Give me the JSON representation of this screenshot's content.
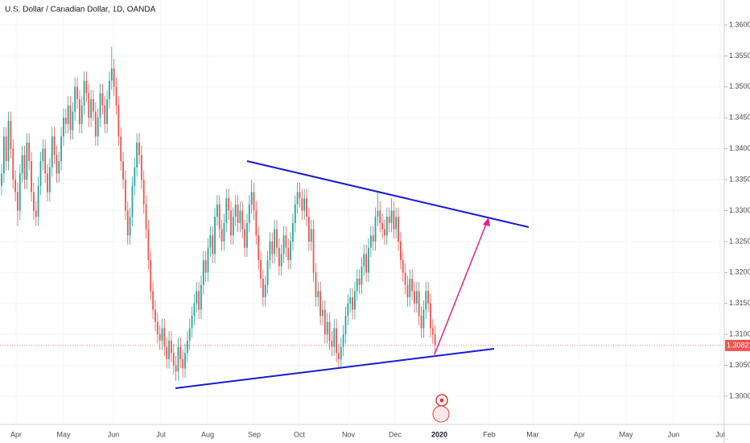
{
  "chart_data": {
    "type": "candlestick",
    "title": "U.S. Dollar / Canadian Dollar, 1D, OANDA",
    "up_color": "#26a69a",
    "down_color": "#ef5350",
    "ylim": [
      1.29544,
      1.36404
    ],
    "yticks": [
      {
        "value": 1.3,
        "label": "1.30000"
      },
      {
        "value": 1.305,
        "label": "1.30500"
      },
      {
        "value": 1.31,
        "label": "1.31000"
      },
      {
        "value": 1.315,
        "label": "1.31500"
      },
      {
        "value": 1.32,
        "label": "1.32000"
      },
      {
        "value": 1.325,
        "label": "1.32500"
      },
      {
        "value": 1.33,
        "label": "1.33000"
      },
      {
        "value": 1.335,
        "label": "1.33500"
      },
      {
        "value": 1.34,
        "label": "1.34000"
      },
      {
        "value": 1.345,
        "label": "1.34500"
      },
      {
        "value": 1.35,
        "label": "1.35000"
      },
      {
        "value": 1.355,
        "label": "1.35500"
      },
      {
        "value": 1.36,
        "label": "1.36000"
      }
    ],
    "xticks": [
      "Apr",
      "May",
      "Jun",
      "Jul",
      "Aug",
      "Sep",
      "Oct",
      "Nov",
      "Dec",
      "2020",
      "Feb",
      "Mar",
      "Apr",
      "May",
      "Jun",
      "Jul"
    ],
    "last_price": 1.30821,
    "candles": [
      [
        1.334,
        1.3375,
        1.3325,
        1.336
      ],
      [
        1.336,
        1.3435,
        1.3345,
        1.342
      ],
      [
        1.342,
        1.3435,
        1.3365,
        1.338
      ],
      [
        1.338,
        1.346,
        1.3365,
        1.3445
      ],
      [
        1.3445,
        1.346,
        1.3385,
        1.34
      ],
      [
        1.34,
        1.3415,
        1.3335,
        1.335
      ],
      [
        1.335,
        1.3365,
        1.3315,
        1.333
      ],
      [
        1.333,
        1.3345,
        1.3275,
        1.33
      ],
      [
        1.33,
        1.3375,
        1.3285,
        1.336
      ],
      [
        1.336,
        1.3405,
        1.3345,
        1.339
      ],
      [
        1.339,
        1.3405,
        1.3335,
        1.335
      ],
      [
        1.335,
        1.3425,
        1.3335,
        1.341
      ],
      [
        1.341,
        1.3425,
        1.3365,
        1.338
      ],
      [
        1.338,
        1.3395,
        1.3315,
        1.333
      ],
      [
        1.333,
        1.3345,
        1.3285,
        1.33
      ],
      [
        1.33,
        1.3315,
        1.3275,
        1.329
      ],
      [
        1.329,
        1.3355,
        1.3275,
        1.334
      ],
      [
        1.334,
        1.3395,
        1.3325,
        1.338
      ],
      [
        1.338,
        1.3415,
        1.3365,
        1.34
      ],
      [
        1.34,
        1.3415,
        1.3345,
        1.336
      ],
      [
        1.336,
        1.3375,
        1.3315,
        1.333
      ],
      [
        1.333,
        1.3385,
        1.3315,
        1.337
      ],
      [
        1.337,
        1.3435,
        1.3355,
        1.342
      ],
      [
        1.342,
        1.3435,
        1.3375,
        1.339
      ],
      [
        1.339,
        1.3405,
        1.3345,
        1.336
      ],
      [
        1.336,
        1.3395,
        1.3345,
        1.338
      ],
      [
        1.338,
        1.3435,
        1.3365,
        1.342
      ],
      [
        1.342,
        1.3465,
        1.3405,
        1.345
      ],
      [
        1.345,
        1.3465,
        1.3425,
        1.344
      ],
      [
        1.344,
        1.3485,
        1.3425,
        1.347
      ],
      [
        1.347,
        1.3485,
        1.3415,
        1.343
      ],
      [
        1.343,
        1.3475,
        1.3415,
        1.346
      ],
      [
        1.346,
        1.3515,
        1.3445,
        1.35
      ],
      [
        1.35,
        1.3515,
        1.3465,
        1.348
      ],
      [
        1.348,
        1.3495,
        1.3425,
        1.344
      ],
      [
        1.344,
        1.3485,
        1.3425,
        1.347
      ],
      [
        1.347,
        1.3525,
        1.3455,
        1.351
      ],
      [
        1.351,
        1.3525,
        1.3475,
        1.349
      ],
      [
        1.349,
        1.3505,
        1.3435,
        1.345
      ],
      [
        1.345,
        1.3495,
        1.3435,
        1.348
      ],
      [
        1.348,
        1.3495,
        1.3445,
        1.346
      ],
      [
        1.346,
        1.3475,
        1.3405,
        1.342
      ],
      [
        1.342,
        1.3465,
        1.3405,
        1.345
      ],
      [
        1.345,
        1.3505,
        1.3435,
        1.349
      ],
      [
        1.349,
        1.3505,
        1.3455,
        1.347
      ],
      [
        1.347,
        1.3485,
        1.3425,
        1.344
      ],
      [
        1.344,
        1.3495,
        1.3425,
        1.348
      ],
      [
        1.348,
        1.3525,
        1.3465,
        1.351
      ],
      [
        1.351,
        1.3565,
        1.3495,
        1.353
      ],
      [
        1.353,
        1.3545,
        1.3485,
        1.35
      ],
      [
        1.35,
        1.3515,
        1.3455,
        1.347
      ],
      [
        1.347,
        1.3485,
        1.3405,
        1.342
      ],
      [
        1.342,
        1.3435,
        1.3365,
        1.338
      ],
      [
        1.338,
        1.3395,
        1.3335,
        1.335
      ],
      [
        1.335,
        1.3365,
        1.3285,
        1.33
      ],
      [
        1.33,
        1.3315,
        1.3245,
        1.326
      ],
      [
        1.326,
        1.3305,
        1.3245,
        1.329
      ],
      [
        1.329,
        1.3355,
        1.3275,
        1.334
      ],
      [
        1.334,
        1.3385,
        1.3325,
        1.337
      ],
      [
        1.337,
        1.3425,
        1.3355,
        1.341
      ],
      [
        1.341,
        1.3425,
        1.3375,
        1.339
      ],
      [
        1.339,
        1.3405,
        1.3335,
        1.335
      ],
      [
        1.335,
        1.3365,
        1.3295,
        1.331
      ],
      [
        1.331,
        1.3325,
        1.3255,
        1.327
      ],
      [
        1.327,
        1.3285,
        1.3205,
        1.322
      ],
      [
        1.322,
        1.3235,
        1.3155,
        1.317
      ],
      [
        1.317,
        1.3185,
        1.3125,
        1.314
      ],
      [
        1.314,
        1.3155,
        1.3105,
        1.312
      ],
      [
        1.312,
        1.3135,
        1.3085,
        1.31
      ],
      [
        1.31,
        1.3115,
        1.3075,
        1.309
      ],
      [
        1.309,
        1.3125,
        1.3075,
        1.311
      ],
      [
        1.311,
        1.3125,
        1.3065,
        1.308
      ],
      [
        1.308,
        1.3095,
        1.3045,
        1.306
      ],
      [
        1.306,
        1.3105,
        1.3045,
        1.309
      ],
      [
        1.309,
        1.3105,
        1.3055,
        1.307
      ],
      [
        1.307,
        1.3085,
        1.3035,
        1.305
      ],
      [
        1.305,
        1.3065,
        1.3025,
        1.304
      ],
      [
        1.304,
        1.3095,
        1.3025,
        1.308
      ],
      [
        1.308,
        1.3095,
        1.3045,
        1.306
      ],
      [
        1.306,
        1.3075,
        1.303,
        1.3045
      ],
      [
        1.3045,
        1.3085,
        1.303,
        1.307
      ],
      [
        1.307,
        1.3105,
        1.3055,
        1.309
      ],
      [
        1.309,
        1.3125,
        1.3075,
        1.311
      ],
      [
        1.311,
        1.3145,
        1.3095,
        1.313
      ],
      [
        1.313,
        1.3165,
        1.3115,
        1.315
      ],
      [
        1.315,
        1.3185,
        1.3135,
        1.317
      ],
      [
        1.317,
        1.3185,
        1.3125,
        1.314
      ],
      [
        1.314,
        1.3195,
        1.3125,
        1.318
      ],
      [
        1.318,
        1.3235,
        1.3165,
        1.322
      ],
      [
        1.322,
        1.3235,
        1.3185,
        1.32
      ],
      [
        1.32,
        1.3255,
        1.3185,
        1.324
      ],
      [
        1.324,
        1.3275,
        1.3225,
        1.326
      ],
      [
        1.326,
        1.3275,
        1.3215,
        1.323
      ],
      [
        1.323,
        1.3305,
        1.3215,
        1.329
      ],
      [
        1.329,
        1.3325,
        1.3275,
        1.331
      ],
      [
        1.331,
        1.3325,
        1.3255,
        1.327
      ],
      [
        1.327,
        1.3285,
        1.3235,
        1.325
      ],
      [
        1.325,
        1.3295,
        1.3235,
        1.328
      ],
      [
        1.328,
        1.3335,
        1.3265,
        1.332
      ],
      [
        1.332,
        1.3335,
        1.3285,
        1.33
      ],
      [
        1.33,
        1.3315,
        1.3245,
        1.326
      ],
      [
        1.326,
        1.3305,
        1.3245,
        1.329
      ],
      [
        1.329,
        1.3325,
        1.3275,
        1.331
      ],
      [
        1.331,
        1.3325,
        1.3265,
        1.328
      ],
      [
        1.328,
        1.3315,
        1.3265,
        1.33
      ],
      [
        1.33,
        1.3315,
        1.3255,
        1.327
      ],
      [
        1.327,
        1.3285,
        1.3225,
        1.324
      ],
      [
        1.324,
        1.3295,
        1.3225,
        1.328
      ],
      [
        1.328,
        1.3325,
        1.3265,
        1.331
      ],
      [
        1.331,
        1.335,
        1.3295,
        1.333
      ],
      [
        1.333,
        1.3345,
        1.3285,
        1.33
      ],
      [
        1.33,
        1.3315,
        1.3245,
        1.326
      ],
      [
        1.326,
        1.3275,
        1.3205,
        1.322
      ],
      [
        1.322,
        1.3235,
        1.3175,
        1.319
      ],
      [
        1.319,
        1.3205,
        1.3145,
        1.316
      ],
      [
        1.316,
        1.3195,
        1.3145,
        1.318
      ],
      [
        1.318,
        1.3235,
        1.3165,
        1.322
      ],
      [
        1.322,
        1.3265,
        1.3205,
        1.325
      ],
      [
        1.325,
        1.3265,
        1.3215,
        1.323
      ],
      [
        1.323,
        1.3285,
        1.3215,
        1.327
      ],
      [
        1.327,
        1.3285,
        1.3225,
        1.324
      ],
      [
        1.324,
        1.3255,
        1.3195,
        1.321
      ],
      [
        1.321,
        1.3245,
        1.3195,
        1.323
      ],
      [
        1.323,
        1.3275,
        1.3215,
        1.326
      ],
      [
        1.326,
        1.3275,
        1.3225,
        1.324
      ],
      [
        1.324,
        1.3255,
        1.3205,
        1.322
      ],
      [
        1.322,
        1.3265,
        1.3205,
        1.325
      ],
      [
        1.325,
        1.3295,
        1.3235,
        1.328
      ],
      [
        1.328,
        1.3325,
        1.3265,
        1.331
      ],
      [
        1.331,
        1.3345,
        1.3295,
        1.333
      ],
      [
        1.333,
        1.3345,
        1.3305,
        1.332
      ],
      [
        1.332,
        1.3335,
        1.3285,
        1.33
      ],
      [
        1.33,
        1.3335,
        1.3285,
        1.332
      ],
      [
        1.332,
        1.3335,
        1.3275,
        1.329
      ],
      [
        1.329,
        1.3305,
        1.3235,
        1.325
      ],
      [
        1.325,
        1.3285,
        1.3235,
        1.327
      ],
      [
        1.327,
        1.3285,
        1.3185,
        1.32
      ],
      [
        1.32,
        1.3215,
        1.3145,
        1.316
      ],
      [
        1.316,
        1.3185,
        1.3145,
        1.317
      ],
      [
        1.317,
        1.3185,
        1.3115,
        1.313
      ],
      [
        1.313,
        1.3155,
        1.3115,
        1.314
      ],
      [
        1.314,
        1.3155,
        1.3085,
        1.31
      ],
      [
        1.31,
        1.3135,
        1.3085,
        1.312
      ],
      [
        1.312,
        1.3135,
        1.3075,
        1.309
      ],
      [
        1.309,
        1.3105,
        1.3065,
        1.308
      ],
      [
        1.308,
        1.3125,
        1.3065,
        1.311
      ],
      [
        1.311,
        1.3125,
        1.3055,
        1.307
      ],
      [
        1.307,
        1.3085,
        1.3045,
        1.306
      ],
      [
        1.306,
        1.3095,
        1.3045,
        1.308
      ],
      [
        1.308,
        1.3115,
        1.3065,
        1.31
      ],
      [
        1.31,
        1.3145,
        1.3085,
        1.313
      ],
      [
        1.313,
        1.3165,
        1.3115,
        1.315
      ],
      [
        1.315,
        1.3175,
        1.3135,
        1.316
      ],
      [
        1.316,
        1.3175,
        1.3125,
        1.314
      ],
      [
        1.314,
        1.3185,
        1.3125,
        1.317
      ],
      [
        1.317,
        1.3205,
        1.3155,
        1.319
      ],
      [
        1.319,
        1.3205,
        1.3165,
        1.318
      ],
      [
        1.318,
        1.3225,
        1.3165,
        1.321
      ],
      [
        1.321,
        1.3245,
        1.3195,
        1.323
      ],
      [
        1.323,
        1.3245,
        1.3185,
        1.32
      ],
      [
        1.32,
        1.3255,
        1.3185,
        1.324
      ],
      [
        1.324,
        1.3275,
        1.3225,
        1.326
      ],
      [
        1.326,
        1.3275,
        1.3235,
        1.325
      ],
      [
        1.325,
        1.3305,
        1.3235,
        1.329
      ],
      [
        1.329,
        1.333,
        1.3275,
        1.33
      ],
      [
        1.33,
        1.3315,
        1.3265,
        1.328
      ],
      [
        1.328,
        1.3295,
        1.3255,
        1.327
      ],
      [
        1.327,
        1.3285,
        1.3245,
        1.326
      ],
      [
        1.326,
        1.3305,
        1.3245,
        1.329
      ],
      [
        1.329,
        1.3305,
        1.3265,
        1.328
      ],
      [
        1.328,
        1.332,
        1.3265,
        1.33
      ],
      [
        1.33,
        1.3315,
        1.3255,
        1.327
      ],
      [
        1.327,
        1.3305,
        1.3255,
        1.329
      ],
      [
        1.329,
        1.3305,
        1.3235,
        1.325
      ],
      [
        1.325,
        1.3265,
        1.3205,
        1.322
      ],
      [
        1.322,
        1.3235,
        1.3185,
        1.32
      ],
      [
        1.32,
        1.3215,
        1.3165,
        1.318
      ],
      [
        1.318,
        1.3195,
        1.3145,
        1.316
      ],
      [
        1.316,
        1.3205,
        1.3145,
        1.319
      ],
      [
        1.319,
        1.3205,
        1.3155,
        1.317
      ],
      [
        1.317,
        1.3185,
        1.3135,
        1.315
      ],
      [
        1.315,
        1.3185,
        1.3135,
        1.317
      ],
      [
        1.317,
        1.3185,
        1.3115,
        1.313
      ],
      [
        1.313,
        1.3145,
        1.3095,
        1.311
      ],
      [
        1.311,
        1.3155,
        1.3095,
        1.314
      ],
      [
        1.314,
        1.3185,
        1.3125,
        1.317
      ],
      [
        1.317,
        1.3185,
        1.3135,
        1.315
      ],
      [
        1.315,
        1.3165,
        1.3095,
        1.311
      ],
      [
        1.311,
        1.3125,
        1.3085,
        1.31
      ],
      [
        1.31,
        1.3115,
        1.3065,
        1.3082
      ]
    ]
  }
}
